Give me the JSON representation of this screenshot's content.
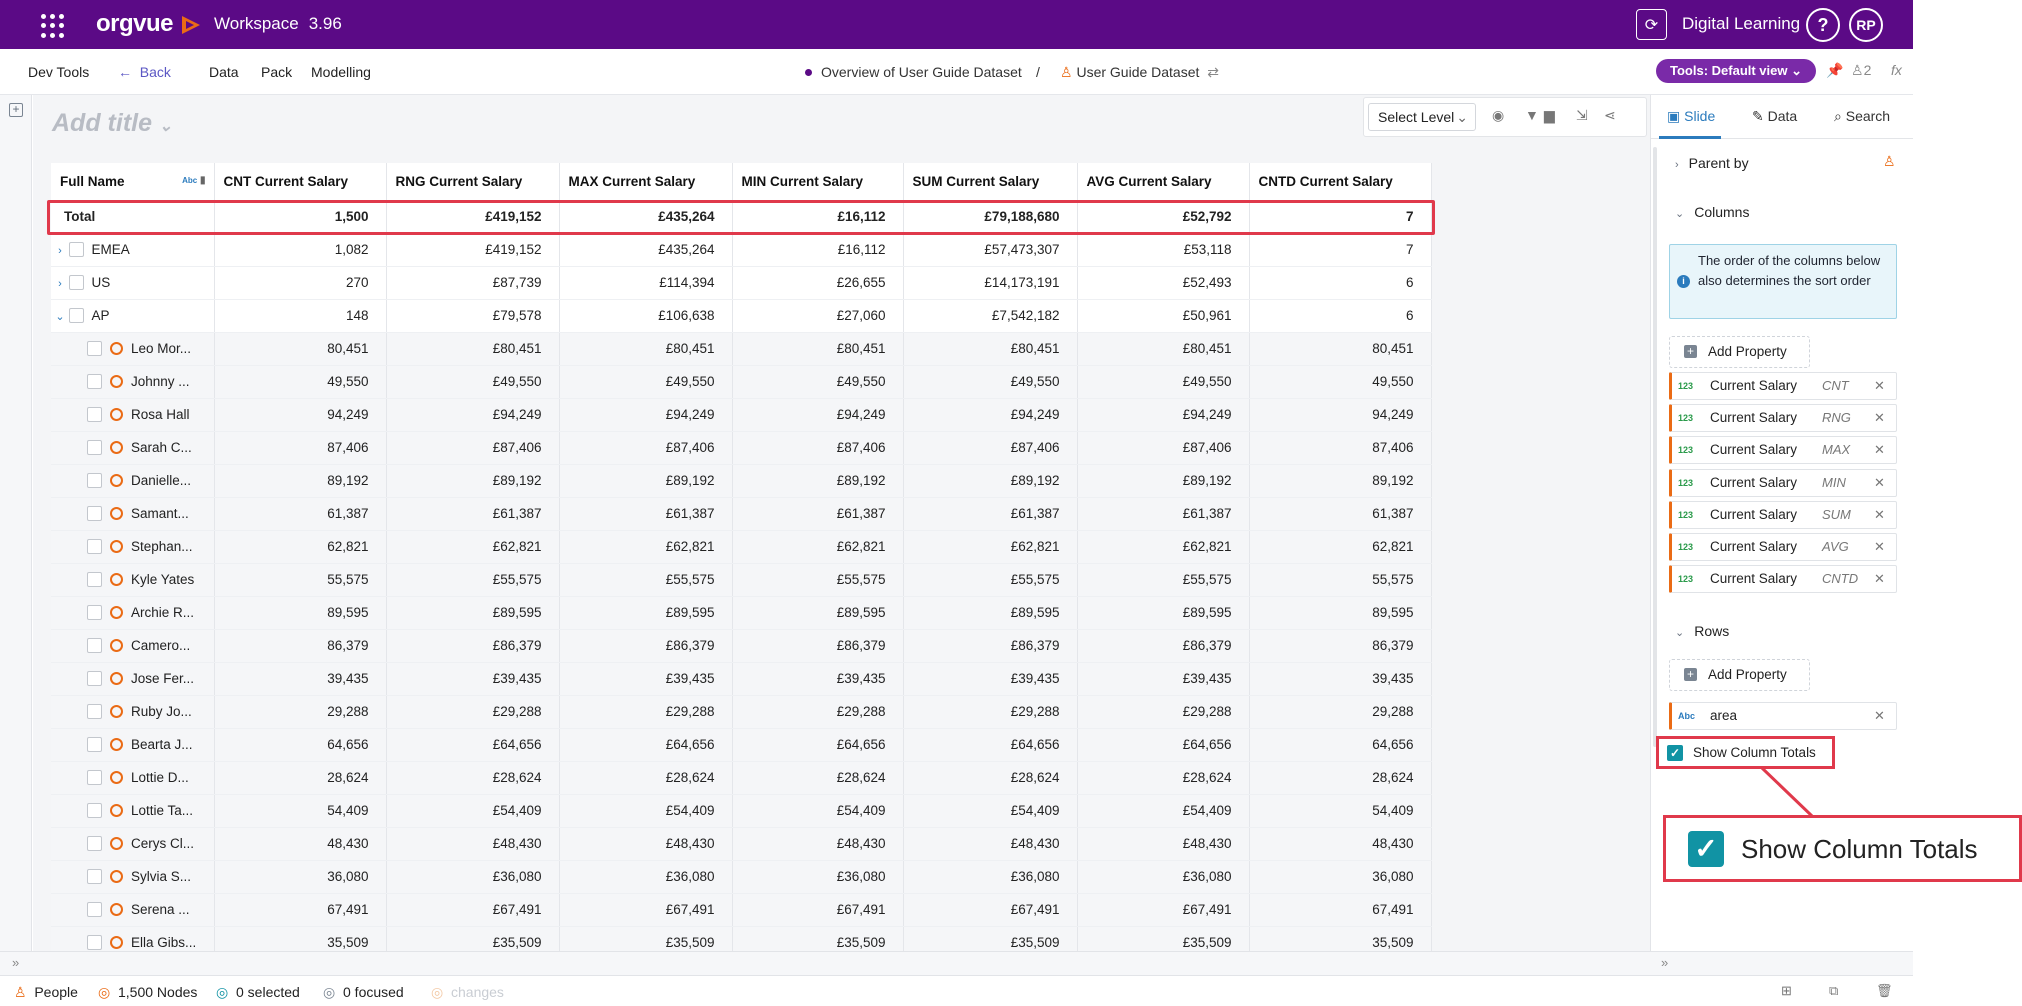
{
  "topbar": {
    "logo": "orgvue",
    "workspace_label": "Workspace",
    "version": "3.96",
    "user_group": "Digital Learning",
    "help_label": "?",
    "avatar_initials": "RP"
  },
  "menubar": {
    "dev_tools": "Dev Tools",
    "back": "Back",
    "data": "Data",
    "pack": "Pack",
    "modelling": "Modelling",
    "crumb_overview": "Overview of User Guide Dataset",
    "crumb_sep": "/",
    "crumb_dataset": "User Guide Dataset",
    "tools_button": "Tools: Default view",
    "user_count": "2",
    "fx": "fx"
  },
  "canvas": {
    "title_placeholder": "Add title",
    "select_level": "Select Level"
  },
  "table": {
    "name_header": "Full Name",
    "name_type_icon": "Abc",
    "columns": [
      "CNT Current Salary",
      "RNG Current Salary",
      "MAX Current Salary",
      "MIN Current Salary",
      "SUM Current Salary",
      "AVG Current Salary",
      "CNTD Current Salary"
    ],
    "total": {
      "name": "Total",
      "values": [
        "1,500",
        "£419,152",
        "£435,264",
        "£16,112",
        "£79,188,680",
        "£52,792",
        "7"
      ]
    },
    "groups": [
      {
        "name": "EMEA",
        "values": [
          "1,082",
          "£419,152",
          "£435,264",
          "£16,112",
          "£57,473,307",
          "£53,118",
          "7"
        ],
        "expanded": false
      },
      {
        "name": "US",
        "values": [
          "270",
          "£87,739",
          "£114,394",
          "£26,655",
          "£14,173,191",
          "£52,493",
          "6"
        ],
        "expanded": false
      },
      {
        "name": "AP",
        "values": [
          "148",
          "£79,578",
          "£106,638",
          "£27,060",
          "£7,542,182",
          "£50,961",
          "6"
        ],
        "expanded": true
      }
    ],
    "people": [
      {
        "name": "Leo Mor...",
        "values": [
          "80,451",
          "£80,451",
          "£80,451",
          "£80,451",
          "£80,451",
          "£80,451",
          "80,451"
        ]
      },
      {
        "name": "Johnny ...",
        "values": [
          "49,550",
          "£49,550",
          "£49,550",
          "£49,550",
          "£49,550",
          "£49,550",
          "49,550"
        ]
      },
      {
        "name": "Rosa Hall",
        "values": [
          "94,249",
          "£94,249",
          "£94,249",
          "£94,249",
          "£94,249",
          "£94,249",
          "94,249"
        ]
      },
      {
        "name": "Sarah C...",
        "values": [
          "87,406",
          "£87,406",
          "£87,406",
          "£87,406",
          "£87,406",
          "£87,406",
          "87,406"
        ]
      },
      {
        "name": "Danielle...",
        "values": [
          "89,192",
          "£89,192",
          "£89,192",
          "£89,192",
          "£89,192",
          "£89,192",
          "89,192"
        ]
      },
      {
        "name": "Samant...",
        "values": [
          "61,387",
          "£61,387",
          "£61,387",
          "£61,387",
          "£61,387",
          "£61,387",
          "61,387"
        ]
      },
      {
        "name": "Stephan...",
        "values": [
          "62,821",
          "£62,821",
          "£62,821",
          "£62,821",
          "£62,821",
          "£62,821",
          "62,821"
        ]
      },
      {
        "name": "Kyle Yates",
        "values": [
          "55,575",
          "£55,575",
          "£55,575",
          "£55,575",
          "£55,575",
          "£55,575",
          "55,575"
        ]
      },
      {
        "name": "Archie R...",
        "values": [
          "89,595",
          "£89,595",
          "£89,595",
          "£89,595",
          "£89,595",
          "£89,595",
          "89,595"
        ]
      },
      {
        "name": "Camero...",
        "values": [
          "86,379",
          "£86,379",
          "£86,379",
          "£86,379",
          "£86,379",
          "£86,379",
          "86,379"
        ]
      },
      {
        "name": "Jose Fer...",
        "values": [
          "39,435",
          "£39,435",
          "£39,435",
          "£39,435",
          "£39,435",
          "£39,435",
          "39,435"
        ]
      },
      {
        "name": "Ruby Jo...",
        "values": [
          "29,288",
          "£29,288",
          "£29,288",
          "£29,288",
          "£29,288",
          "£29,288",
          "29,288"
        ]
      },
      {
        "name": "Bearta J...",
        "values": [
          "64,656",
          "£64,656",
          "£64,656",
          "£64,656",
          "£64,656",
          "£64,656",
          "64,656"
        ]
      },
      {
        "name": "Lottie D...",
        "values": [
          "28,624",
          "£28,624",
          "£28,624",
          "£28,624",
          "£28,624",
          "£28,624",
          "28,624"
        ]
      },
      {
        "name": "Lottie Ta...",
        "values": [
          "54,409",
          "£54,409",
          "£54,409",
          "£54,409",
          "£54,409",
          "£54,409",
          "54,409"
        ]
      },
      {
        "name": "Cerys Cl...",
        "values": [
          "48,430",
          "£48,430",
          "£48,430",
          "£48,430",
          "£48,430",
          "£48,430",
          "48,430"
        ]
      },
      {
        "name": "Sylvia S...",
        "values": [
          "36,080",
          "£36,080",
          "£36,080",
          "£36,080",
          "£36,080",
          "£36,080",
          "36,080"
        ]
      },
      {
        "name": "Serena ...",
        "values": [
          "67,491",
          "£67,491",
          "£67,491",
          "£67,491",
          "£67,491",
          "£67,491",
          "67,491"
        ]
      },
      {
        "name": "Ella Gibs...",
        "values": [
          "35,509",
          "£35,509",
          "£35,509",
          "£35,509",
          "£35,509",
          "£35,509",
          "35,509"
        ]
      }
    ]
  },
  "panel": {
    "tabs": [
      "Slide",
      "Data",
      "Search"
    ],
    "parent_by": "Parent by",
    "columns_section": "Columns",
    "info_text": "The order of the columns below also determines the sort order",
    "add_property": "Add Property",
    "column_chips": [
      {
        "type": "123",
        "name": "Current Salary",
        "agg": "CNT"
      },
      {
        "type": "123",
        "name": "Current Salary",
        "agg": "RNG"
      },
      {
        "type": "123",
        "name": "Current Salary",
        "agg": "MAX"
      },
      {
        "type": "123",
        "name": "Current Salary",
        "agg": "MIN"
      },
      {
        "type": "123",
        "name": "Current Salary",
        "agg": "SUM"
      },
      {
        "type": "123",
        "name": "Current Salary",
        "agg": "AVG"
      },
      {
        "type": "123",
        "name": "Current Salary",
        "agg": "CNTD"
      }
    ],
    "rows_section": "Rows",
    "row_chip": {
      "type": "Abc",
      "name": "area"
    },
    "show_column_totals": "Show Column Totals",
    "show_column_totals_checked": true
  },
  "statusbar": {
    "people": "People",
    "nodes": "1,500 Nodes",
    "selected": "0 selected",
    "focused": "0 focused",
    "changes": "changes"
  },
  "colors": {
    "brand": "#5b0a86",
    "accent": "#2b7bbd",
    "highlight": "#e0394b",
    "orange": "#ea6b15",
    "teal": "#1193a4"
  }
}
